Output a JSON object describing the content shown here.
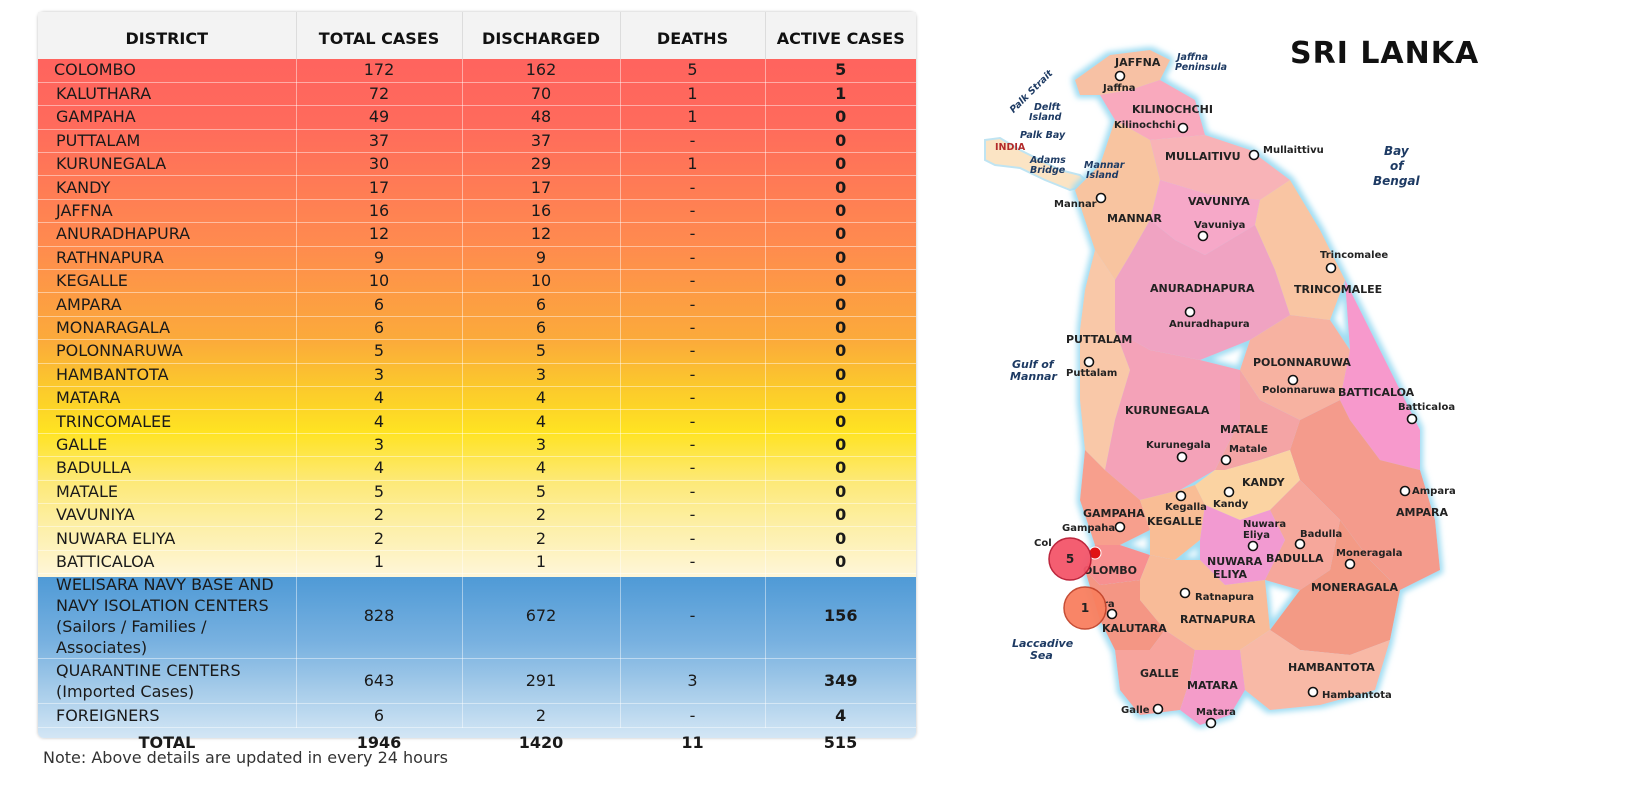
{
  "table": {
    "headers": [
      "DISTRICT",
      "TOTAL CASES",
      "DISCHARGED",
      "DEATHS",
      "ACTIVE CASES"
    ],
    "districts": [
      {
        "name": "COLOMBO",
        "total": "172",
        "discharged": "162",
        "deaths": "5",
        "active": "5"
      },
      {
        "name": "KALUTHARA",
        "total": "72",
        "discharged": "70",
        "deaths": "1",
        "active": "1"
      },
      {
        "name": "GAMPAHA",
        "total": "49",
        "discharged": "48",
        "deaths": "1",
        "active": "0"
      },
      {
        "name": "PUTTALAM",
        "total": "37",
        "discharged": "37",
        "deaths": "-",
        "active": "0"
      },
      {
        "name": "KURUNEGALA",
        "total": "30",
        "discharged": "29",
        "deaths": "1",
        "active": "0"
      },
      {
        "name": "KANDY",
        "total": "17",
        "discharged": "17",
        "deaths": "-",
        "active": "0"
      },
      {
        "name": "JAFFNA",
        "total": "16",
        "discharged": "16",
        "deaths": "-",
        "active": "0"
      },
      {
        "name": "ANURADHAPURA",
        "total": "12",
        "discharged": "12",
        "deaths": "-",
        "active": "0"
      },
      {
        "name": "RATHNAPURA",
        "total": "9",
        "discharged": "9",
        "deaths": "-",
        "active": "0"
      },
      {
        "name": "KEGALLE",
        "total": "10",
        "discharged": "10",
        "deaths": "-",
        "active": "0"
      },
      {
        "name": "AMPARA",
        "total": "6",
        "discharged": "6",
        "deaths": "-",
        "active": "0"
      },
      {
        "name": "MONARAGALA",
        "total": "6",
        "discharged": "6",
        "deaths": "-",
        "active": "0"
      },
      {
        "name": "POLONNARUWA",
        "total": "5",
        "discharged": "5",
        "deaths": "-",
        "active": "0"
      },
      {
        "name": "HAMBANTOTA",
        "total": "3",
        "discharged": "3",
        "deaths": "-",
        "active": "0"
      },
      {
        "name": "MATARA",
        "total": "4",
        "discharged": "4",
        "deaths": "-",
        "active": "0"
      },
      {
        "name": "TRINCOMALEE",
        "total": "4",
        "discharged": "4",
        "deaths": "-",
        "active": "0"
      },
      {
        "name": "GALLE",
        "total": "3",
        "discharged": "3",
        "deaths": "-",
        "active": "0"
      },
      {
        "name": "BADULLA",
        "total": "4",
        "discharged": "4",
        "deaths": "-",
        "active": "0"
      },
      {
        "name": "MATALE",
        "total": "5",
        "discharged": "5",
        "deaths": "-",
        "active": "0"
      },
      {
        "name": "VAVUNIYA",
        "total": "2",
        "discharged": "2",
        "deaths": "-",
        "active": "0"
      },
      {
        "name": "NUWARA ELIYA",
        "total": "2",
        "discharged": "2",
        "deaths": "-",
        "active": "0"
      },
      {
        "name": "BATTICALOA",
        "total": "1",
        "discharged": "1",
        "deaths": "-",
        "active": "0"
      }
    ],
    "navy": {
      "line1": "WELISARA NAVY BASE AND",
      "line2": "NAVY ISOLATION CENTERS",
      "line3": "(Sailors / Families / Associates)",
      "total": "828",
      "discharged": "672",
      "deaths": "-",
      "active": "156"
    },
    "quarantine": {
      "line1": "QUARANTINE CENTERS",
      "line2": "(Imported Cases)",
      "total": "643",
      "discharged": "291",
      "deaths": "3",
      "active": "349"
    },
    "foreigners": {
      "name": "FOREIGNERS",
      "total": "6",
      "discharged": "2",
      "deaths": "-",
      "active": "4"
    },
    "total_row": {
      "label": "TOTAL",
      "total": "1946",
      "discharged": "1420",
      "deaths": "11",
      "active": "515"
    }
  },
  "note": "Note: Above details are updated in every 24 hours",
  "map": {
    "title": "SRI LANKA",
    "district_labels": {
      "jaffna": "JAFFNA",
      "kilinochchi": "KILINOCHCHI",
      "mullaitivu": "MULLAITIVU",
      "mannar": "MANNAR",
      "vavuniya": "VAVUNIYA",
      "anuradhapura": "ANURADHAPURA",
      "trincomalee": "TRINCOMALEE",
      "puttalam": "PUTTALAM",
      "polonnaruwa": "POLONNARUWA",
      "batticaloa": "BATTICALOA",
      "kurunegala": "KURUNEGALA",
      "matale": "MATALE",
      "kandy": "KANDY",
      "gampaha": "GAMPAHA",
      "kegalle": "KEGALLE",
      "nuwara_eliya_1": "NUWARA",
      "nuwara_eliya_2": "ELIYA",
      "badulla": "BADULLA",
      "ampara": "AMPARA",
      "colombo": "OLOMBO",
      "moneragala": "MONERAGALA",
      "kalutara": "KALUTARA",
      "ratnapura": "RATNAPURA",
      "hambantota": "HAMBANTOTA",
      "galle": "GALLE",
      "matara": "MATARA"
    },
    "town_labels": {
      "jaffna": "Jaffna",
      "kilinochchi": "Kilinochchi",
      "mullaittivu": "Mullaittivu",
      "mannar": "Mannar",
      "vavuniya": "Vavuniya",
      "trincomalee": "Trincomalee",
      "anuradhapura": "Anuradhapura",
      "puttalam": "Puttalam",
      "polonnaruwa": "Polonnaruwa",
      "batticaloa": "Batticaloa",
      "kurunegala": "Kurunegala",
      "matale": "Matale",
      "kandy": "Kandy",
      "kegalla": "Kegalla",
      "gampaha": "Gampaha",
      "nuwara_1": "Nuwara",
      "nuwara_2": "Eliya",
      "badulla": "Badulla",
      "ampara": "Ampara",
      "colombo": "Col",
      "moneragala": "Moneragala",
      "ratnapura": "Ratnapura",
      "hambantota": "Hambantota",
      "galle": "Galle",
      "matara": "Matara",
      "kalutara": "ra"
    },
    "geo_labels": {
      "jaffna_pen_1": "Jaffna",
      "jaffna_pen_2": "Peninsula",
      "palk_strait": "Palk Strait",
      "delft_1": "Delft",
      "delft_2": "Island",
      "palk_bay": "Palk Bay",
      "india": "INDIA",
      "adams_1": "Adams",
      "adams_2": "Bridge",
      "mannar_isl_1": "Mannar",
      "mannar_isl_2": "Island",
      "bay_1": "Bay",
      "bay_2": "of",
      "bay_3": "Bengal",
      "gulf_1": "Gulf of",
      "gulf_2": "Mannar",
      "laccadive_1": "Laccadive",
      "laccadive_2": "Sea"
    },
    "bubbles": {
      "colombo": "5",
      "kalutara": "1"
    }
  }
}
